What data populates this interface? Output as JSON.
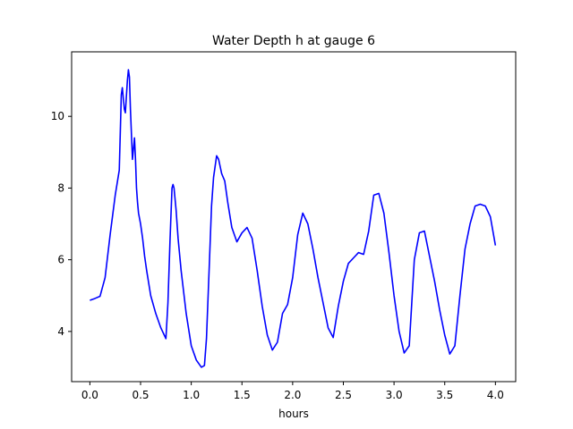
{
  "chart_data": {
    "type": "line",
    "title": "Water Depth h at gauge 6",
    "xlabel": "hours",
    "ylabel": "",
    "xlim": [
      -0.18,
      4.2
    ],
    "ylim": [
      2.6,
      11.8
    ],
    "xticks": [
      0.0,
      0.5,
      1.0,
      1.5,
      2.0,
      2.5,
      3.0,
      3.5,
      4.0
    ],
    "xtick_labels": [
      "0.0",
      "0.5",
      "1.0",
      "1.5",
      "2.0",
      "2.5",
      "3.0",
      "3.5",
      "4.0"
    ],
    "yticks": [
      4,
      6,
      8,
      10
    ],
    "ytick_labels": [
      "4",
      "6",
      "8",
      "10"
    ],
    "grid": false,
    "series": [
      {
        "name": "",
        "color": "#0000ff",
        "x": [
          0.0,
          0.05,
          0.1,
          0.15,
          0.2,
          0.25,
          0.29,
          0.31,
          0.32,
          0.34,
          0.35,
          0.37,
          0.38,
          0.39,
          0.4,
          0.42,
          0.44,
          0.45,
          0.46,
          0.47,
          0.48,
          0.5,
          0.52,
          0.54,
          0.56,
          0.6,
          0.65,
          0.7,
          0.75,
          0.77,
          0.79,
          0.81,
          0.82,
          0.83,
          0.85,
          0.87,
          0.9,
          0.95,
          1.0,
          1.05,
          1.1,
          1.13,
          1.15,
          1.18,
          1.2,
          1.22,
          1.25,
          1.27,
          1.3,
          1.33,
          1.36,
          1.4,
          1.45,
          1.5,
          1.55,
          1.6,
          1.65,
          1.7,
          1.75,
          1.8,
          1.85,
          1.9,
          1.95,
          2.0,
          2.05,
          2.1,
          2.15,
          2.2,
          2.25,
          2.3,
          2.35,
          2.4,
          2.45,
          2.5,
          2.55,
          2.6,
          2.65,
          2.7,
          2.75,
          2.8,
          2.85,
          2.9,
          2.95,
          3.0,
          3.05,
          3.1,
          3.15,
          3.2,
          3.25,
          3.3,
          3.35,
          3.4,
          3.45,
          3.5,
          3.55,
          3.6,
          3.65,
          3.7,
          3.75,
          3.8,
          3.85,
          3.9,
          3.95,
          4.0
        ],
        "y": [
          4.87,
          4.92,
          4.98,
          5.5,
          6.7,
          7.8,
          8.5,
          10.6,
          10.8,
          10.2,
          10.1,
          11.0,
          11.3,
          11.1,
          10.2,
          8.8,
          9.4,
          8.8,
          8.0,
          7.6,
          7.3,
          7.0,
          6.6,
          6.1,
          5.7,
          5.0,
          4.5,
          4.1,
          3.8,
          4.8,
          6.5,
          8.0,
          8.1,
          8.0,
          7.4,
          6.6,
          5.7,
          4.5,
          3.6,
          3.2,
          3.0,
          3.05,
          3.8,
          6.0,
          7.5,
          8.3,
          8.9,
          8.8,
          8.4,
          8.2,
          7.6,
          6.9,
          6.5,
          6.75,
          6.9,
          6.6,
          5.7,
          4.7,
          3.9,
          3.48,
          3.7,
          4.5,
          4.75,
          5.5,
          6.7,
          7.3,
          7.0,
          6.3,
          5.5,
          4.8,
          4.1,
          3.83,
          4.7,
          5.4,
          5.9,
          6.05,
          6.2,
          6.15,
          6.8,
          7.8,
          7.85,
          7.3,
          6.2,
          5.0,
          4.0,
          3.4,
          3.6,
          6.0,
          6.75,
          6.8,
          6.1,
          5.4,
          4.6,
          3.9,
          3.37,
          3.6,
          5.0,
          6.3,
          7.0,
          7.5,
          7.55,
          7.5,
          7.2,
          6.4
        ]
      }
    ]
  }
}
